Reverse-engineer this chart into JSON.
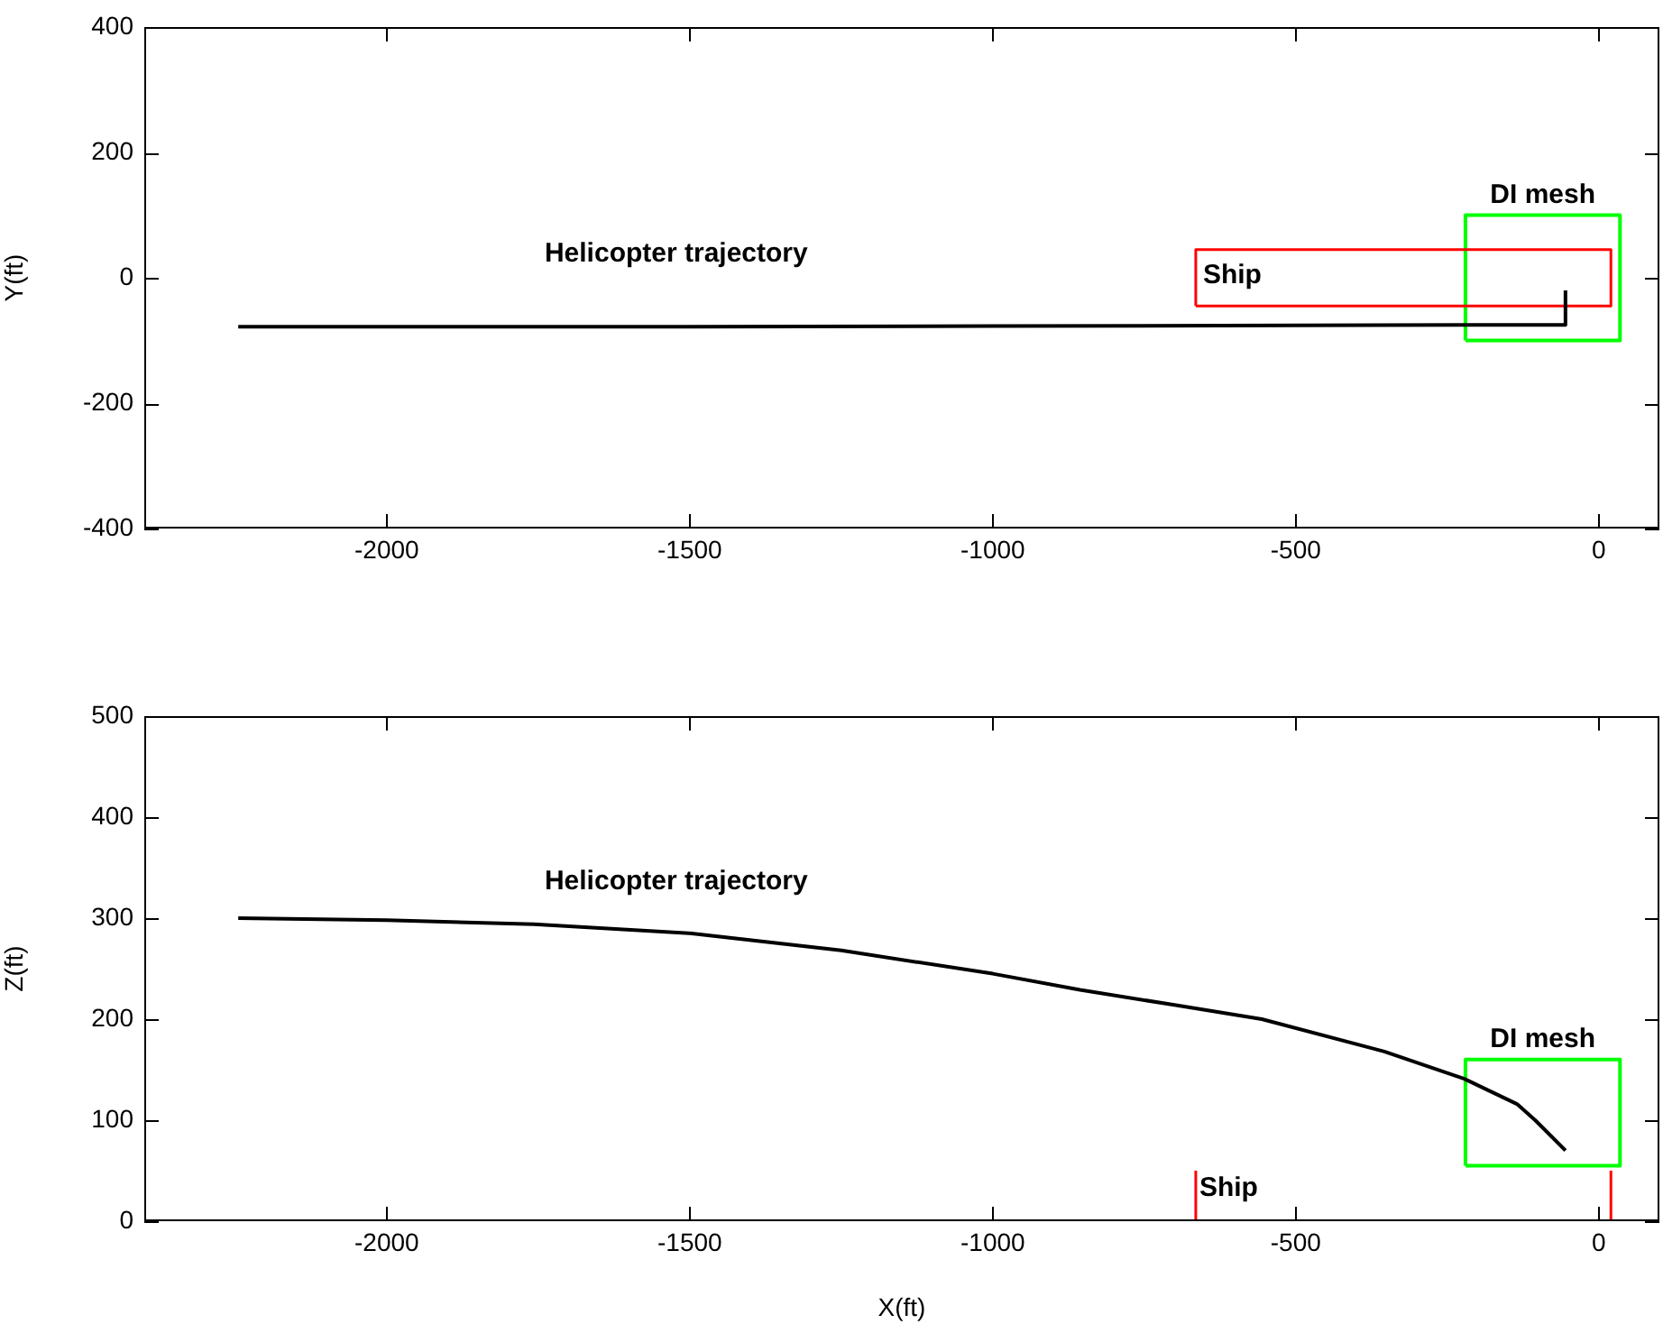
{
  "chart_data": [
    {
      "type": "line",
      "ylabel": "Y(ft)",
      "xlim": [
        -2400,
        100
      ],
      "xticks": [
        -2000,
        -1500,
        -1000,
        -500,
        0
      ],
      "ylim": [
        -400,
        400
      ],
      "yticks": [
        -400,
        -200,
        0,
        200,
        400
      ],
      "series": [
        {
          "name": "Helicopter trajectory",
          "color": "#000000",
          "x": [
            -2245,
            -1500,
            -1000,
            -500,
            -220,
            -55,
            -55
          ],
          "values": [
            -78,
            -78,
            -77,
            -76,
            -75,
            -75,
            -20
          ]
        },
        {
          "name": "Ship",
          "color": "#ff0000",
          "x": [
            -665,
            -665,
            20,
            20
          ],
          "values": [
            -45,
            45,
            45,
            -45
          ]
        },
        {
          "color": "#ff0000",
          "x": [
            -665,
            20
          ],
          "values": [
            -45,
            -45
          ]
        },
        {
          "name": "DI mesh",
          "color": "#00ff00",
          "x": [
            -220,
            -220,
            35,
            35
          ],
          "values": [
            -100,
            100,
            100,
            -100
          ]
        },
        {
          "color": "#00ff00",
          "x": [
            -220,
            35
          ],
          "values": [
            -100,
            -100
          ]
        }
      ]
    },
    {
      "type": "line",
      "xlabel": "X(ft)",
      "ylabel": "Z(ft)",
      "xlim": [
        -2400,
        100
      ],
      "xticks": [
        -2000,
        -1500,
        -1000,
        -500,
        0
      ],
      "ylim": [
        0,
        500
      ],
      "yticks": [
        0,
        100,
        200,
        300,
        400,
        500
      ],
      "series": [
        {
          "name": "Helicopter trajectory",
          "color": "#000000",
          "x": [
            -2245,
            -2000,
            -1757,
            -1500,
            -1250,
            -1000,
            -856,
            -700,
            -556,
            -354,
            -222,
            -135,
            -105,
            -55
          ],
          "values": [
            300,
            298,
            294,
            285,
            268,
            245,
            229,
            214,
            200,
            168,
            141,
            116,
            100,
            70
          ]
        },
        {
          "name": "Ship",
          "color": "#ff0000",
          "x": [
            -665,
            -665
          ],
          "values": [
            0,
            50
          ]
        },
        {
          "color": "#ff0000",
          "x": [
            20,
            20
          ],
          "values": [
            0,
            50
          ]
        },
        {
          "name": "DI mesh",
          "color": "#00ff00",
          "x": [
            -220,
            -220,
            35,
            35
          ],
          "values": [
            55,
            160,
            160,
            55
          ]
        },
        {
          "color": "#00ff00",
          "x": [
            -220,
            35
          ],
          "values": [
            55,
            55
          ]
        }
      ]
    }
  ]
}
